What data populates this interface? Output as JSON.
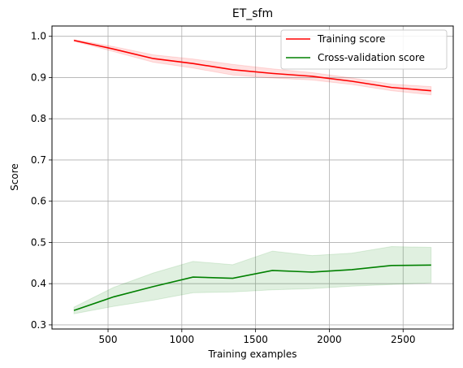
{
  "chart_data": {
    "type": "line",
    "title": "ET_sfm",
    "xlabel": "Training examples",
    "ylabel": "Score",
    "xlim": [
      120,
      2840
    ],
    "ylim": [
      0.29,
      1.025
    ],
    "xticks": [
      500,
      1000,
      1500,
      2000,
      2500
    ],
    "xtick_labels": [
      "500",
      "1000",
      "1500",
      "2000",
      "2500"
    ],
    "yticks": [
      0.3,
      0.4,
      0.5,
      0.6,
      0.7,
      0.8,
      0.9,
      1.0
    ],
    "ytick_labels": [
      "0.3",
      "0.4",
      "0.5",
      "0.6",
      "0.7",
      "0.8",
      "0.9",
      "1.0"
    ],
    "grid": true,
    "legend_position": "top-right",
    "x": [
      269,
      538,
      807,
      1076,
      1345,
      1614,
      1883,
      2152,
      2421,
      2690
    ],
    "series": [
      {
        "name": "Training score",
        "color": "#ff0000",
        "band_color": "#ff0000",
        "values": [
          0.99,
          0.969,
          0.946,
          0.934,
          0.919,
          0.91,
          0.903,
          0.891,
          0.876,
          0.868
        ],
        "band_lower": [
          0.988,
          0.963,
          0.937,
          0.923,
          0.906,
          0.899,
          0.894,
          0.883,
          0.868,
          0.858
        ],
        "band_upper": [
          0.992,
          0.975,
          0.955,
          0.945,
          0.932,
          0.921,
          0.912,
          0.899,
          0.884,
          0.878
        ]
      },
      {
        "name": "Cross-validation score",
        "color": "#008000",
        "band_color": "#008000",
        "values": [
          0.335,
          0.368,
          0.393,
          0.416,
          0.413,
          0.432,
          0.428,
          0.434,
          0.444,
          0.445
        ],
        "band_lower": [
          0.327,
          0.345,
          0.36,
          0.378,
          0.38,
          0.385,
          0.388,
          0.394,
          0.398,
          0.402
        ],
        "band_upper": [
          0.343,
          0.391,
          0.426,
          0.454,
          0.446,
          0.479,
          0.468,
          0.474,
          0.49,
          0.488
        ]
      }
    ]
  }
}
